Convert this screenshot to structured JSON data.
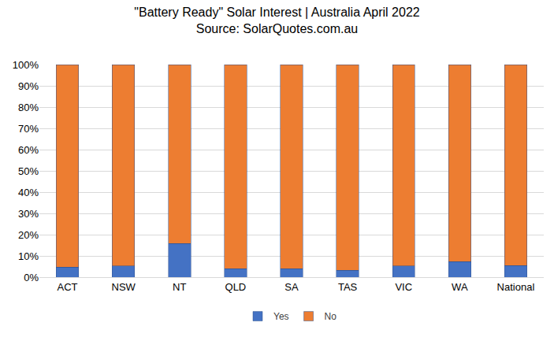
{
  "chart_data": {
    "type": "bar",
    "title": "\"Battery Ready\" Solar Interest | Australia April 2022",
    "subtitle": "Source: SolarQuotes.com.au",
    "categories": [
      "ACT",
      "NSW",
      "NT",
      "QLD",
      "SA",
      "TAS",
      "VIC",
      "WA",
      "National"
    ],
    "series": [
      {
        "name": "Yes",
        "color": "#4472c4",
        "values": [
          4.7,
          5.3,
          15.8,
          4.0,
          4.0,
          3.3,
          5.3,
          7.3,
          5.5
        ]
      },
      {
        "name": "No",
        "color": "#ed7d31",
        "values": [
          95.3,
          94.7,
          84.2,
          96.0,
          96.0,
          96.7,
          94.7,
          92.7,
          94.5
        ]
      }
    ],
    "stacked": true,
    "ylim": [
      0,
      100
    ],
    "yticks": [
      {
        "value": 0,
        "label": "0%"
      },
      {
        "value": 10,
        "label": "10%"
      },
      {
        "value": 20,
        "label": "20%"
      },
      {
        "value": 30,
        "label": "30%"
      },
      {
        "value": 40,
        "label": "40%"
      },
      {
        "value": 50,
        "label": "50%"
      },
      {
        "value": 60,
        "label": "60%"
      },
      {
        "value": 70,
        "label": "70%"
      },
      {
        "value": 80,
        "label": "80%"
      },
      {
        "value": 90,
        "label": "90%"
      },
      {
        "value": 100,
        "label": "100%"
      }
    ],
    "grid": true,
    "legend": "bottom"
  }
}
